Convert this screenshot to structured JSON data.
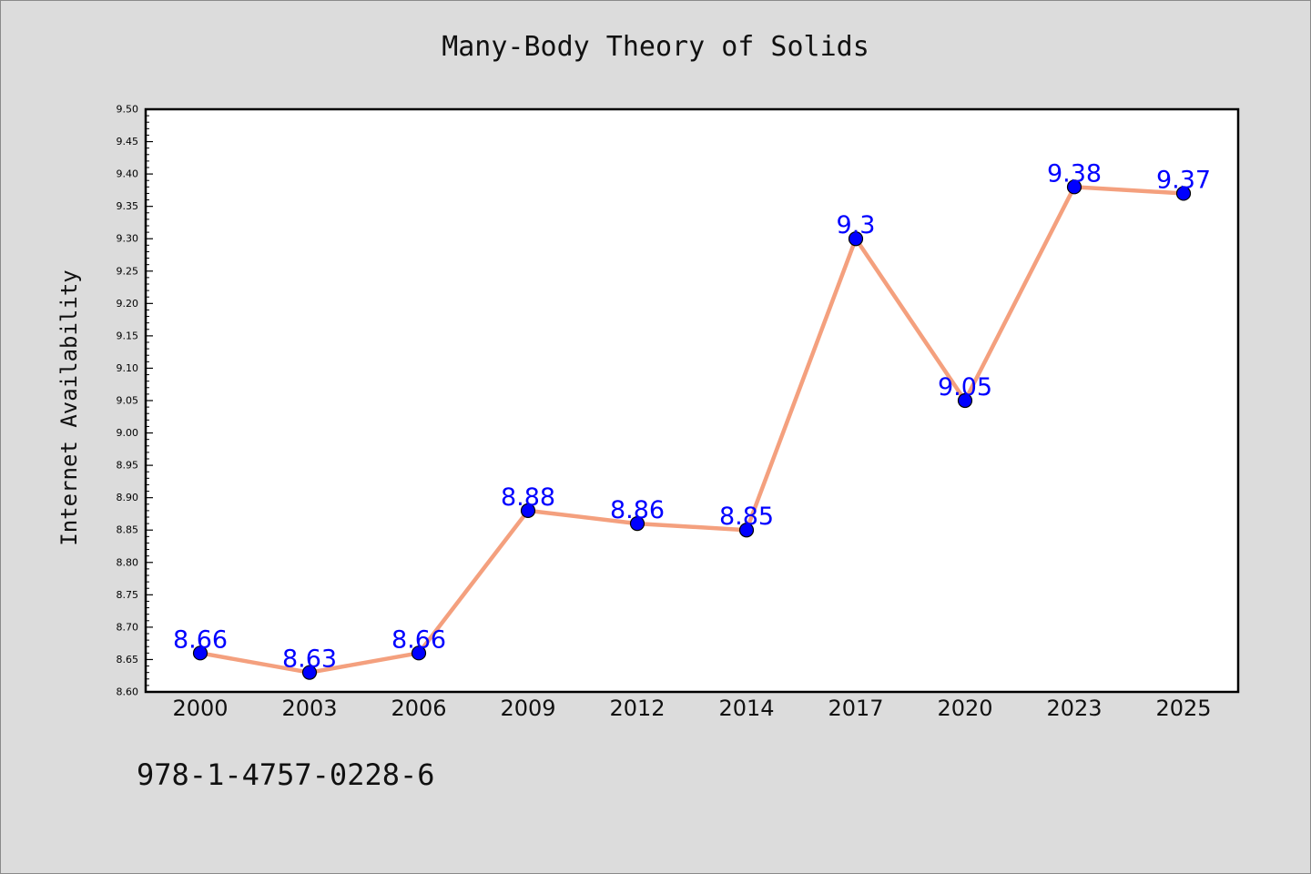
{
  "chart_data": {
    "type": "line",
    "title": "Many-Body Theory of Solids",
    "xlabel": "",
    "ylabel": "Internet Availability",
    "categories": [
      "2000",
      "2003",
      "2006",
      "2009",
      "2012",
      "2014",
      "2017",
      "2020",
      "2023",
      "2025"
    ],
    "series": [
      {
        "values": [
          8.66,
          8.63,
          8.66,
          8.88,
          8.86,
          8.85,
          9.3,
          9.05,
          9.38,
          9.37
        ],
        "data_labels": [
          "8.66",
          "8.63",
          "8.66",
          "8.88",
          "8.86",
          "8.85",
          "9.3",
          "9.05",
          "9.38",
          "9.37"
        ],
        "line_color": "#f4a07e",
        "marker_color": "#0000ff"
      }
    ],
    "ylim": [
      8.6,
      9.5
    ],
    "y_ticks": [
      "8.60",
      "8.65",
      "8.70",
      "8.75",
      "8.80",
      "8.85",
      "8.90",
      "8.95",
      "9.00",
      "9.05",
      "9.10",
      "9.15",
      "9.20",
      "9.25",
      "9.30",
      "9.35",
      "9.40",
      "9.45",
      "9.50"
    ],
    "grid": false,
    "legend": "none",
    "label_color": "#0000ff"
  },
  "footer": {
    "isbn": "978-1-4757-0228-6"
  }
}
